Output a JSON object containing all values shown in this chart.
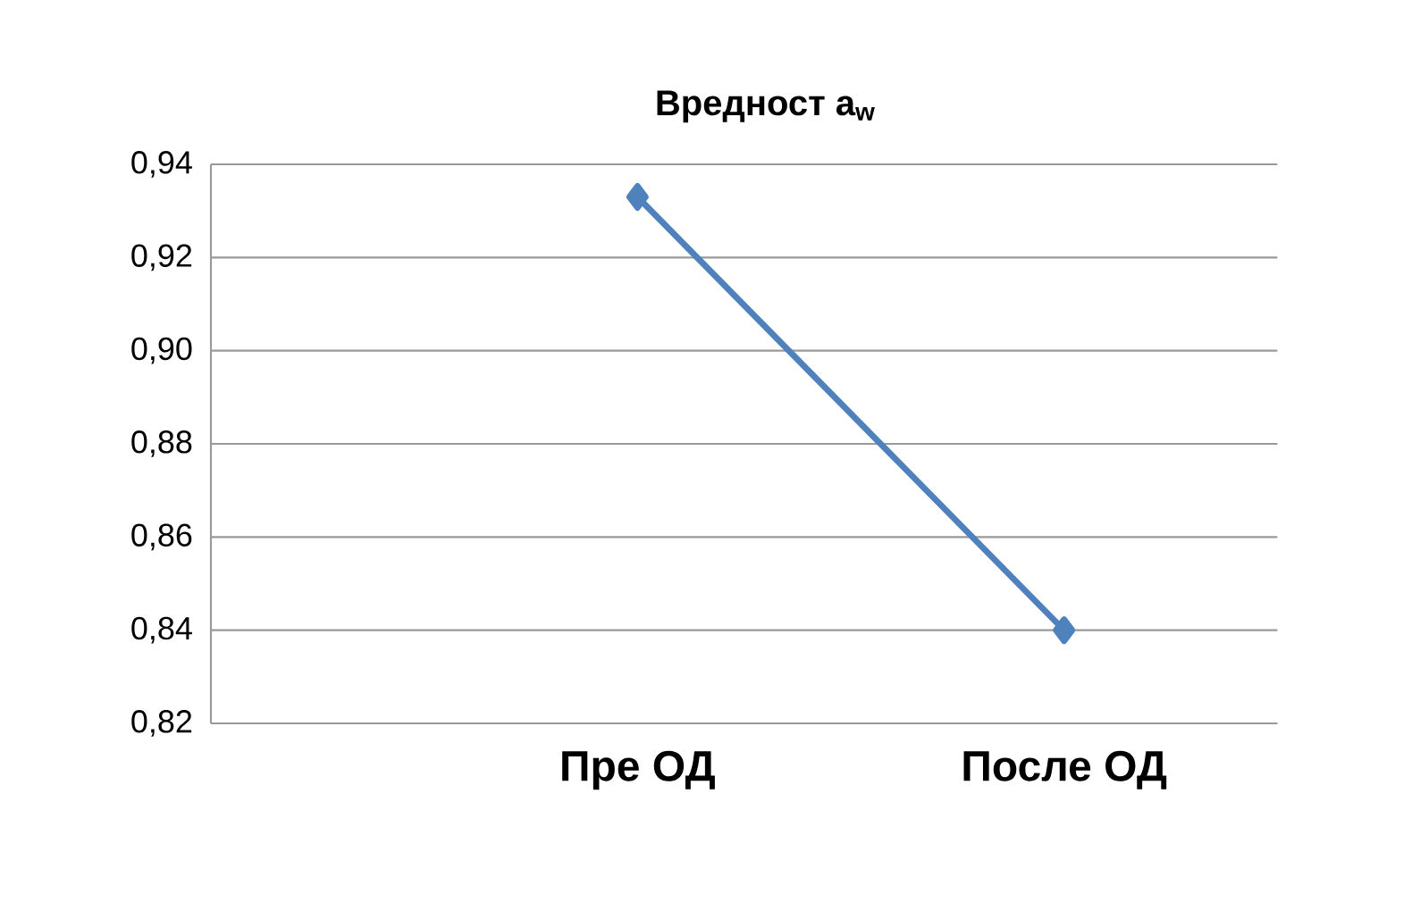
{
  "chart_data": {
    "type": "line",
    "title": "Вредност a$_{w}$",
    "categories": [
      null,
      "Пре ОД",
      "После ОД"
    ],
    "series": [
      {
        "color": "#4f81bd",
        "values": [
          null,
          0.933,
          0.84
        ]
      }
    ],
    "ylim": [
      0.82,
      0.94
    ],
    "yticks": [
      {
        "value": 0.82,
        "label": "0,82"
      },
      {
        "value": 0.84,
        "label": "0,84"
      },
      {
        "value": 0.86,
        "label": "0,86"
      },
      {
        "value": 0.88,
        "label": "0,88"
      },
      {
        "value": 0.9,
        "label": "0,90"
      },
      {
        "value": 0.92,
        "label": "0,92"
      },
      {
        "value": 0.94,
        "label": "0,94"
      }
    ],
    "grid": "y",
    "marker": "diamond",
    "line_style": "solid"
  }
}
